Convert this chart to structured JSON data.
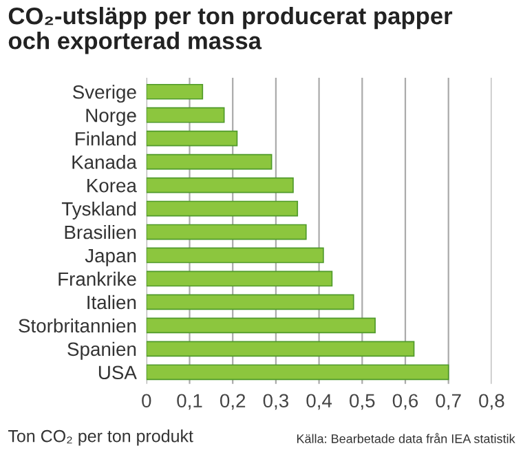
{
  "chart_data": {
    "type": "bar",
    "orientation": "horizontal",
    "title": "CO₂-utsläpp per ton producerat papper\noch exporterad massa",
    "xlabel": "Ton CO₂ per ton produkt",
    "annotations": [
      "Källa: Bearbetade data från IEA statistik"
    ],
    "categories": [
      "Sverige",
      "Norge",
      "Finland",
      "Kanada",
      "Korea",
      "Tyskland",
      "Brasilien",
      "Japan",
      "Frankrike",
      "Italien",
      "Storbritannien",
      "Spanien",
      "USA"
    ],
    "values": [
      0.13,
      0.18,
      0.21,
      0.29,
      0.34,
      0.35,
      0.37,
      0.41,
      0.43,
      0.48,
      0.53,
      0.62,
      0.7
    ],
    "color": "#8cc63e",
    "xlim": [
      0,
      0.8
    ],
    "xticks": [
      {
        "value": 0,
        "label": "0"
      },
      {
        "value": 0.1,
        "label": "0,1"
      },
      {
        "value": 0.2,
        "label": "0,2"
      },
      {
        "value": 0.3,
        "label": "0,3"
      },
      {
        "value": 0.4,
        "label": "0,4"
      },
      {
        "value": 0.5,
        "label": "0,5"
      },
      {
        "value": 0.6,
        "label": "0,6"
      },
      {
        "value": 0.7,
        "label": "0,7"
      },
      {
        "value": 0.8,
        "label": "0,8"
      }
    ],
    "grid": "x"
  }
}
